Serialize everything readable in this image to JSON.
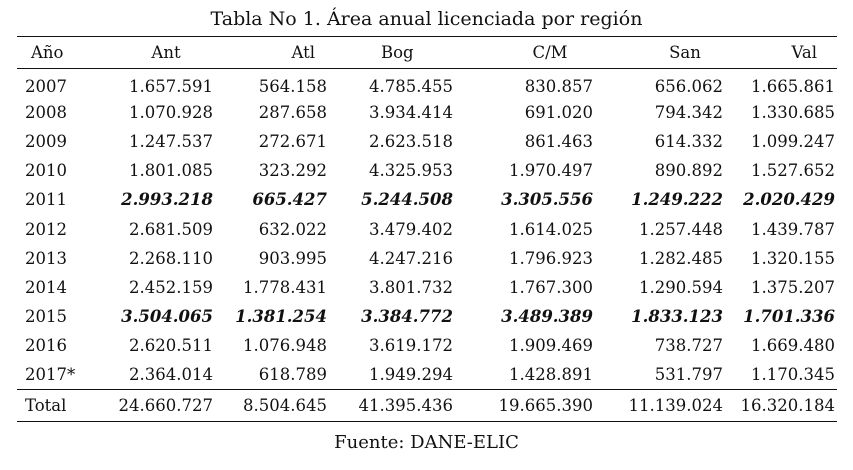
{
  "title": "Tabla No 1. Área anual licenciada por región",
  "headers": [
    "Año",
    "Ant",
    "Atl",
    "Bog",
    "C/M",
    "San",
    "Val"
  ],
  "rows": [
    {
      "year": "2007",
      "values": [
        "1.657.591",
        "564.158",
        "4.785.455",
        "830.857",
        "656.062",
        "1.665.861"
      ],
      "highlight": false
    },
    {
      "year": "2008",
      "values": [
        "1.070.928",
        "287.658",
        "3.934.414",
        "691.020",
        "794.342",
        "1.330.685"
      ],
      "highlight": false
    },
    {
      "year": "2009",
      "values": [
        "1.247.537",
        "272.671",
        "2.623.518",
        "861.463",
        "614.332",
        "1.099.247"
      ],
      "highlight": false
    },
    {
      "year": "2010",
      "values": [
        "1.801.085",
        "323.292",
        "4.325.953",
        "1.970.497",
        "890.892",
        "1.527.652"
      ],
      "highlight": false
    },
    {
      "year": "2011",
      "values": [
        "2.993.218",
        "665.427",
        "5.244.508",
        "3.305.556",
        "1.249.222",
        "2.020.429"
      ],
      "highlight": true
    },
    {
      "year": "2012",
      "values": [
        "2.681.509",
        "632.022",
        "3.479.402",
        "1.614.025",
        "1.257.448",
        "1.439.787"
      ],
      "highlight": false
    },
    {
      "year": "2013",
      "values": [
        "2.268.110",
        "903.995",
        "4.247.216",
        "1.796.923",
        "1.282.485",
        "1.320.155"
      ],
      "highlight": false
    },
    {
      "year": "2014",
      "values": [
        "2.452.159",
        "1.778.431",
        "3.801.732",
        "1.767.300",
        "1.290.594",
        "1.375.207"
      ],
      "highlight": false
    },
    {
      "year": "2015",
      "values": [
        "3.504.065",
        "1.381.254",
        "3.384.772",
        "3.489.389",
        "1.833.123",
        "1.701.336"
      ],
      "highlight": true
    },
    {
      "year": "2016",
      "values": [
        "2.620.511",
        "1.076.948",
        "3.619.172",
        "1.909.469",
        "738.727",
        "1.669.480"
      ],
      "highlight": false
    },
    {
      "year": "2017*",
      "values": [
        "2.364.014",
        "618.789",
        "1.949.294",
        "1.428.891",
        "531.797",
        "1.170.345"
      ],
      "highlight": false
    }
  ],
  "total": {
    "label": "Total",
    "values": [
      "24.660.727",
      "8.504.645",
      "41.395.436",
      "19.665.390",
      "11.139.024",
      "16.320.184"
    ]
  },
  "source": "Fuente: DANE-ELIC"
}
